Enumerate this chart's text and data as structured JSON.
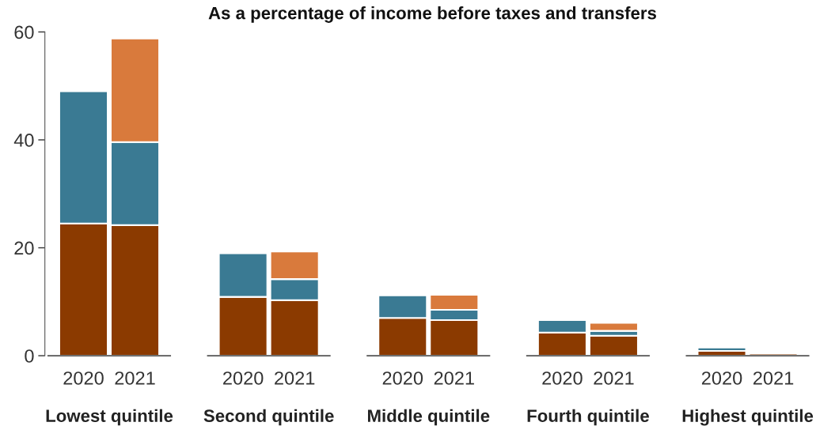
{
  "chart_data": {
    "type": "bar",
    "title": "As a percentage of income before taxes and transfers",
    "categories": [
      "2020",
      "2021",
      "2020",
      "2021",
      "2020",
      "2021",
      "2020",
      "2021",
      "2020",
      "2021"
    ],
    "stacked": true,
    "series": [
      {
        "color": "#8b3a00",
        "values": [
          24.5,
          24.2,
          10.9,
          10.3,
          7.0,
          6.6,
          4.3,
          3.7,
          0.9,
          0.4
        ]
      },
      {
        "color": "#3a7a93",
        "values": [
          24.5,
          15.4,
          8.1,
          3.9,
          4.2,
          1.9,
          2.3,
          0.9,
          0.6,
          null
        ]
      },
      {
        "color": "#d97a3c",
        "values": [
          null,
          19.2,
          null,
          5.1,
          null,
          2.8,
          null,
          1.5,
          null,
          null
        ]
      }
    ],
    "ylim": [
      0,
      60
    ],
    "yticks": [
      0,
      20,
      40,
      60
    ],
    "grid": false,
    "legend": false,
    "annotations": [
      "Lowest quintile",
      "Second quintile",
      "Middle quintile",
      "Fourth quintile",
      "Highest quintile"
    ]
  }
}
